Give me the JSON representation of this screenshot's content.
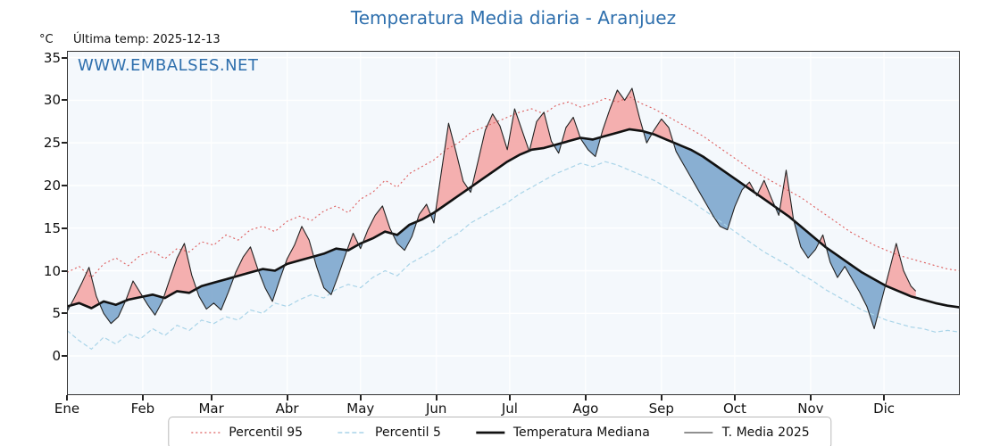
{
  "title": "Temperatura Media diaria - Aranjuez",
  "subtitle": {
    "units": "°C",
    "last_temp": "Última temp: 2025-12-13"
  },
  "watermark": "WWW.EMBALSES.NET",
  "axes": {
    "y_ticks": [
      0,
      5,
      10,
      15,
      20,
      25,
      30,
      35
    ],
    "y_min": -4.6,
    "y_max": 35.8,
    "days_in_year": 365,
    "month_labels": [
      "Ene",
      "Feb",
      "Mar",
      "Abr",
      "May",
      "Jun",
      "Jul",
      "Ago",
      "Sep",
      "Oct",
      "Nov",
      "Dic"
    ],
    "month_start_days": [
      0,
      31,
      59,
      90,
      120,
      151,
      181,
      212,
      243,
      273,
      304,
      334
    ]
  },
  "legend": {
    "items": [
      {
        "key": "percentil-95",
        "label": "Percentil 95",
        "swatch": "dotted-red"
      },
      {
        "key": "percentil-5",
        "label": "Percentil 5",
        "swatch": "dashed-lightblue"
      },
      {
        "key": "mediana",
        "label": "Temperatura Mediana",
        "swatch": "solid-thick-black"
      },
      {
        "key": "t-media-2025",
        "label": "T. Media 2025",
        "swatch": "solid-thin-black"
      }
    ]
  },
  "colors": {
    "title": "#2e6fad",
    "watermark": "#2e6fad",
    "p95": "#dd5c5c",
    "p5": "#a9d4e8",
    "median": "#111111",
    "t2025": "#222222",
    "fill_above": "#f4a6a6",
    "fill_below": "#7da6cd",
    "plot_bg": "#f4f8fc",
    "grid": "#ffffff",
    "spine": "#333333"
  },
  "chart_data": {
    "type": "line",
    "title": "Temperatura Media diaria - Aranjuez",
    "xlabel": "",
    "ylabel": "°C",
    "x_unit": "day_of_year",
    "x_range": [
      0,
      365
    ],
    "ylim": [
      0,
      35
    ],
    "grid": true,
    "legend_position": "bottom",
    "fill_between": {
      "upper": "T. Media 2025",
      "baseline": "Temperatura Mediana",
      "above": "red",
      "below": "blue"
    },
    "series": [
      {
        "name": "Percentil 95",
        "style": "dotted",
        "x_start": 0,
        "x_step": 5,
        "values": [
          9.8,
          10.5,
          9.2,
          10.8,
          11.5,
          10.6,
          11.8,
          12.3,
          11.4,
          12.6,
          12.2,
          13.4,
          13.0,
          14.2,
          13.6,
          14.8,
          15.2,
          14.6,
          15.8,
          16.4,
          15.9,
          17.0,
          17.6,
          16.8,
          18.4,
          19.2,
          20.6,
          19.8,
          21.4,
          22.2,
          23.0,
          24.2,
          25.0,
          26.2,
          26.8,
          27.4,
          28.0,
          28.6,
          29.0,
          28.4,
          29.4,
          29.8,
          29.2,
          29.6,
          30.2,
          29.8,
          30.4,
          29.6,
          29.0,
          28.2,
          27.4,
          26.6,
          25.8,
          24.8,
          23.8,
          22.8,
          21.8,
          21.0,
          20.2,
          19.4,
          18.6,
          17.6,
          16.6,
          15.6,
          14.6,
          13.8,
          13.0,
          12.4,
          11.8,
          11.4,
          11.0,
          10.6,
          10.2,
          10.0
        ]
      },
      {
        "name": "Percentil 5",
        "style": "dashed",
        "x_start": 0,
        "x_step": 5,
        "values": [
          3.0,
          1.8,
          0.8,
          2.2,
          1.4,
          2.6,
          2.0,
          3.2,
          2.4,
          3.6,
          3.0,
          4.2,
          3.8,
          4.6,
          4.2,
          5.4,
          5.0,
          6.2,
          5.8,
          6.6,
          7.2,
          6.8,
          7.8,
          8.4,
          8.0,
          9.2,
          10.0,
          9.4,
          10.8,
          11.6,
          12.4,
          13.6,
          14.4,
          15.6,
          16.4,
          17.2,
          18.0,
          19.0,
          19.8,
          20.6,
          21.4,
          22.0,
          22.6,
          22.2,
          22.8,
          22.4,
          21.8,
          21.2,
          20.6,
          19.8,
          19.0,
          18.2,
          17.2,
          16.2,
          15.2,
          14.2,
          13.2,
          12.2,
          11.4,
          10.6,
          9.6,
          8.8,
          7.8,
          7.0,
          6.2,
          5.4,
          4.8,
          4.2,
          3.8,
          3.4,
          3.2,
          2.8,
          3.0,
          2.8
        ]
      },
      {
        "name": "Temperatura Mediana",
        "style": "solid-thick",
        "x_start": 0,
        "x_step": 5,
        "values": [
          5.8,
          6.2,
          5.6,
          6.4,
          6.0,
          6.6,
          6.9,
          7.2,
          6.8,
          7.6,
          7.4,
          8.2,
          8.6,
          9.0,
          9.4,
          9.8,
          10.2,
          10.0,
          10.8,
          11.2,
          11.6,
          12.0,
          12.6,
          12.4,
          13.2,
          13.8,
          14.6,
          14.2,
          15.4,
          16.0,
          16.8,
          17.8,
          18.8,
          19.8,
          20.8,
          21.8,
          22.8,
          23.6,
          24.2,
          24.4,
          24.8,
          25.2,
          25.6,
          25.4,
          25.8,
          26.2,
          26.6,
          26.4,
          26.0,
          25.4,
          24.8,
          24.2,
          23.4,
          22.4,
          21.4,
          20.4,
          19.4,
          18.4,
          17.4,
          16.4,
          15.2,
          14.0,
          12.8,
          11.8,
          10.8,
          9.8,
          9.0,
          8.2,
          7.6,
          7.0,
          6.6,
          6.2,
          5.9,
          5.7
        ]
      },
      {
        "name": "T. Media 2025",
        "style": "solid-thin",
        "x": [
          0,
          3,
          6,
          9,
          12,
          15,
          18,
          21,
          24,
          27,
          30,
          33,
          36,
          39,
          42,
          45,
          48,
          51,
          54,
          57,
          60,
          63,
          66,
          69,
          72,
          75,
          78,
          81,
          84,
          87,
          90,
          93,
          96,
          99,
          102,
          105,
          108,
          111,
          114,
          117,
          120,
          123,
          126,
          129,
          132,
          135,
          138,
          141,
          144,
          147,
          150,
          153,
          156,
          159,
          162,
          165,
          168,
          171,
          174,
          177,
          180,
          183,
          186,
          189,
          192,
          195,
          198,
          201,
          204,
          207,
          210,
          213,
          216,
          219,
          222,
          225,
          228,
          231,
          234,
          237,
          240,
          243,
          246,
          249,
          252,
          255,
          258,
          261,
          264,
          267,
          270,
          273,
          276,
          279,
          282,
          285,
          288,
          291,
          294,
          297,
          300,
          303,
          306,
          309,
          312,
          315,
          318,
          321,
          324,
          327,
          330,
          333,
          336,
          339,
          342,
          345,
          347
        ],
        "values": [
          5.2,
          6.8,
          8.5,
          10.4,
          7.0,
          5.0,
          3.8,
          4.6,
          6.5,
          8.8,
          7.4,
          6.0,
          4.8,
          6.4,
          9.0,
          11.5,
          13.2,
          9.5,
          7.0,
          5.5,
          6.2,
          5.4,
          7.5,
          9.8,
          11.6,
          12.8,
          10.2,
          8.0,
          6.4,
          9.0,
          11.4,
          13.0,
          15.2,
          13.6,
          10.5,
          8.0,
          7.2,
          9.5,
          12.0,
          14.4,
          12.6,
          14.8,
          16.5,
          17.6,
          15.0,
          13.2,
          12.4,
          14.0,
          16.6,
          17.8,
          15.6,
          21.5,
          27.3,
          24.0,
          20.5,
          19.2,
          22.8,
          26.5,
          28.4,
          27.0,
          24.2,
          29.0,
          26.5,
          24.0,
          27.5,
          28.6,
          25.2,
          23.8,
          26.8,
          28.0,
          25.5,
          24.2,
          23.4,
          26.5,
          29.0,
          31.2,
          30.0,
          31.4,
          28.0,
          25.0,
          26.5,
          27.8,
          26.8,
          24.0,
          22.5,
          21.0,
          19.5,
          18.0,
          16.5,
          15.2,
          14.8,
          17.5,
          19.5,
          20.4,
          18.8,
          20.6,
          18.5,
          16.5,
          21.8,
          16.0,
          12.8,
          11.5,
          12.5,
          14.2,
          11.0,
          9.2,
          10.5,
          9.0,
          7.5,
          5.8,
          3.2,
          6.5,
          9.8,
          13.2,
          10.0,
          8.2,
          7.6
        ]
      }
    ]
  }
}
